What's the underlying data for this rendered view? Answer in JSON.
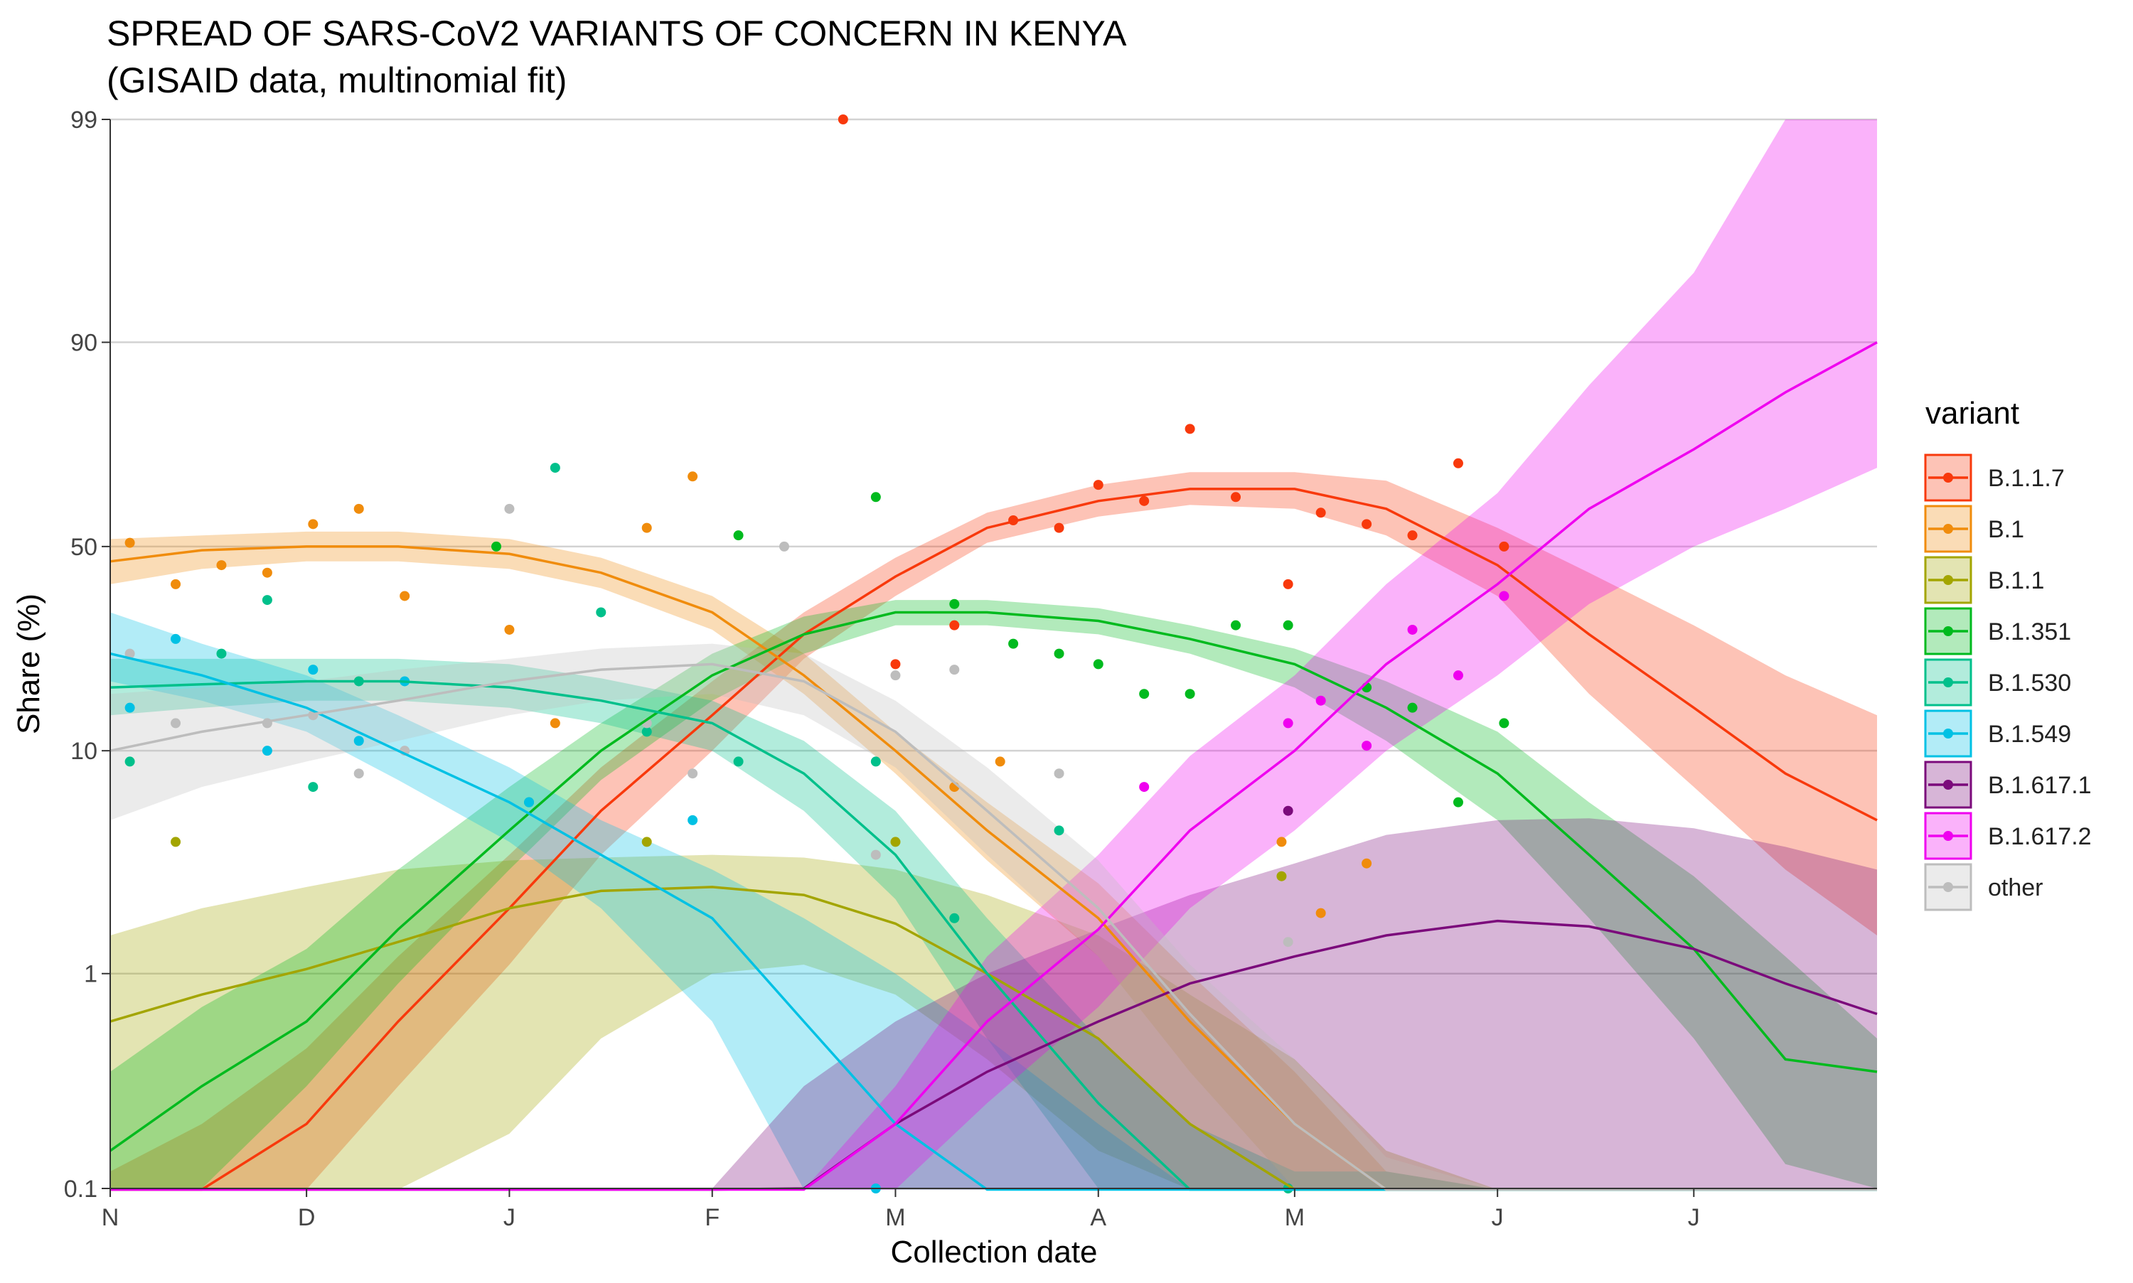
{
  "chart_data": {
    "type": "line",
    "title": "SPREAD OF SARS-CoV2 VARIANTS OF CONCERN IN KENYA",
    "subtitle": "(GISAID data, multinomial fit)",
    "xlabel": "Collection date",
    "ylabel": "Share (%)",
    "y_scale": "logit",
    "ylim": [
      0.1,
      99
    ],
    "y_ticks": [
      0.1,
      1,
      10,
      50,
      90,
      99
    ],
    "y_tick_labels": [
      "0.1",
      "1",
      "10",
      "50",
      "90",
      "99"
    ],
    "xlim": [
      "2020-11-01",
      "2021-07-29"
    ],
    "x_ticks": [
      "2020-11-01",
      "2020-12-01",
      "2021-01-01",
      "2021-02-01",
      "2021-03-01",
      "2021-04-01",
      "2021-05-01",
      "2021-06-01",
      "2021-07-01"
    ],
    "x_tick_labels": [
      "N",
      "D",
      "J",
      "F",
      "M",
      "A",
      "M",
      "J",
      "J"
    ],
    "grid": "horizontal",
    "legend_title": "variant",
    "legend_position": "right",
    "x": [
      "2020-11-01",
      "2020-11-15",
      "2020-12-01",
      "2020-12-15",
      "2021-01-01",
      "2021-01-15",
      "2021-02-01",
      "2021-02-15",
      "2021-03-01",
      "2021-03-15",
      "2021-04-01",
      "2021-04-15",
      "2021-05-01",
      "2021-05-15",
      "2021-06-01",
      "2021-06-15",
      "2021-07-01",
      "2021-07-15",
      "2021-07-29"
    ],
    "series": [
      {
        "name": "B.1.1.7",
        "color": "#F8390C",
        "fit": [
          0.05,
          0.08,
          0.2,
          0.6,
          2.0,
          5.5,
          14,
          28,
          42,
          55,
          62,
          65,
          65,
          60,
          45,
          28,
          15,
          8,
          5
        ],
        "lower": [
          0.02,
          0.03,
          0.09,
          0.3,
          1.1,
          3.5,
          10,
          23,
          37,
          51,
          58,
          61,
          60,
          53,
          37,
          17,
          7,
          3,
          1.5
        ],
        "upper": [
          0.12,
          0.2,
          0.45,
          1.2,
          3.5,
          8.5,
          19,
          33,
          47,
          59,
          66,
          69,
          69,
          67,
          55,
          43,
          30,
          20,
          14
        ],
        "points": [
          [
            "2021-02-21",
            99
          ],
          [
            "2021-03-01",
            22
          ],
          [
            "2021-03-10",
            30
          ],
          [
            "2021-03-19",
            57
          ],
          [
            "2021-03-26",
            55
          ],
          [
            "2021-04-01",
            66
          ],
          [
            "2021-04-08",
            62
          ],
          [
            "2021-04-15",
            78
          ],
          [
            "2021-04-22",
            63
          ],
          [
            "2021-04-30",
            40
          ],
          [
            "2021-05-05",
            59
          ],
          [
            "2021-05-12",
            56
          ],
          [
            "2021-05-19",
            53
          ],
          [
            "2021-05-26",
            71
          ],
          [
            "2021-06-02",
            50
          ]
        ]
      },
      {
        "name": "B.1",
        "color": "#F08C0C",
        "fit": [
          46,
          49,
          50,
          50,
          48,
          43,
          33,
          20,
          10,
          4.5,
          1.8,
          0.6,
          0.2,
          0.06,
          0.02,
          0.01,
          0.01,
          0.01,
          0.01
        ],
        "lower": [
          40,
          44,
          46,
          46,
          44,
          39,
          29,
          17,
          8,
          3.3,
          1.2,
          0.35,
          0.1,
          0.03,
          0.01,
          0.01,
          0.01,
          0.01,
          0.01
        ],
        "upper": [
          52,
          53,
          54,
          54,
          52,
          47,
          37,
          24,
          12,
          6,
          2.6,
          1.0,
          0.35,
          0.12,
          0.04,
          0.02,
          0.02,
          0.02,
          0.02
        ],
        "points": [
          [
            "2020-11-04",
            51
          ],
          [
            "2020-11-11",
            40
          ],
          [
            "2020-11-18",
            45
          ],
          [
            "2020-11-25",
            43
          ],
          [
            "2020-12-02",
            56
          ],
          [
            "2020-12-09",
            60
          ],
          [
            "2020-12-16",
            37
          ],
          [
            "2021-01-01",
            29
          ],
          [
            "2021-01-08",
            13
          ],
          [
            "2021-01-22",
            55
          ],
          [
            "2021-01-29",
            68
          ],
          [
            "2021-03-10",
            7
          ],
          [
            "2021-03-17",
            9
          ],
          [
            "2021-04-29",
            4
          ],
          [
            "2021-05-05",
            1.9
          ],
          [
            "2021-05-12",
            3.2
          ]
        ]
      },
      {
        "name": "B.1.1",
        "color": "#A3A500",
        "fit": [
          0.6,
          0.8,
          1.05,
          1.4,
          2.0,
          2.4,
          2.5,
          2.3,
          1.7,
          1.0,
          0.5,
          0.2,
          0.07,
          0.02,
          0.01,
          0.01,
          0.01,
          0.01,
          0.01
        ],
        "lower": [
          0.1,
          0.08,
          0.06,
          0.08,
          0.18,
          0.5,
          1.0,
          1.1,
          0.8,
          0.4,
          0.15,
          0.05,
          0.02,
          0.01,
          0.01,
          0.01,
          0.01,
          0.01,
          0.01
        ],
        "upper": [
          1.5,
          2.0,
          2.5,
          3.0,
          3.3,
          3.4,
          3.5,
          3.4,
          3.0,
          2.3,
          1.5,
          0.8,
          0.4,
          0.15,
          0.06,
          0.03,
          0.02,
          0.02,
          0.02
        ],
        "points": [
          [
            "2020-11-11",
            4
          ],
          [
            "2021-01-22",
            4
          ],
          [
            "2021-03-01",
            4
          ],
          [
            "2021-04-29",
            2.8
          ]
        ]
      },
      {
        "name": "B.1.351",
        "color": "#00BA1E",
        "fit": [
          0.15,
          0.3,
          0.6,
          1.6,
          4.5,
          10,
          20,
          28,
          33,
          33,
          31,
          27,
          22,
          15,
          8,
          3.5,
          1.3,
          0.4,
          0.35
        ],
        "lower": [
          0.05,
          0.1,
          0.3,
          0.9,
          3.0,
          7.5,
          16,
          24,
          30,
          30,
          28,
          24,
          18,
          11,
          5,
          1.8,
          0.5,
          0.13,
          0.1
        ],
        "upper": [
          0.35,
          0.7,
          1.3,
          3.0,
          7.0,
          13,
          24,
          32,
          36,
          36,
          34,
          30,
          25,
          19,
          12,
          6,
          2.8,
          1.2,
          0.5
        ],
        "points": [
          [
            "2020-12-30",
            50
          ],
          [
            "2021-02-05",
            53
          ],
          [
            "2021-02-26",
            63
          ],
          [
            "2021-03-10",
            35
          ],
          [
            "2021-03-19",
            26
          ],
          [
            "2021-03-26",
            24
          ],
          [
            "2021-04-01",
            22
          ],
          [
            "2021-04-08",
            17
          ],
          [
            "2021-04-15",
            17
          ],
          [
            "2021-04-22",
            30
          ],
          [
            "2021-04-30",
            30
          ],
          [
            "2021-05-12",
            18
          ],
          [
            "2021-05-19",
            15
          ],
          [
            "2021-05-26",
            6
          ],
          [
            "2021-06-02",
            13
          ]
        ]
      },
      {
        "name": "B.1.530",
        "color": "#00C08B",
        "fit": [
          18,
          18.5,
          19,
          19,
          18,
          16,
          13,
          8,
          3.5,
          1.0,
          0.25,
          0.06,
          0.015,
          0.01,
          0.01,
          0.01,
          0.01,
          0.01,
          0.01
        ],
        "lower": [
          14,
          15,
          16,
          16,
          15,
          13,
          10,
          5.5,
          2.2,
          0.5,
          0.1,
          0.02,
          0.01,
          0.01,
          0.01,
          0.01,
          0.01,
          0.01,
          0.01
        ],
        "upper": [
          23,
          23,
          23,
          23,
          22,
          19.5,
          16,
          11,
          5.5,
          1.8,
          0.5,
          0.2,
          0.12,
          0.12,
          0.08,
          0.03,
          0.02,
          0.02,
          0.02
        ],
        "points": [
          [
            "2020-11-04",
            9
          ],
          [
            "2020-11-18",
            24
          ],
          [
            "2020-11-25",
            36
          ],
          [
            "2020-12-02",
            7
          ],
          [
            "2020-12-09",
            19
          ],
          [
            "2021-01-04",
            6
          ],
          [
            "2021-01-08",
            70
          ],
          [
            "2021-01-15",
            33
          ],
          [
            "2021-01-22",
            12
          ],
          [
            "2021-02-05",
            9
          ],
          [
            "2021-02-26",
            9
          ],
          [
            "2021-03-10",
            1.8
          ],
          [
            "2021-03-26",
            4.5
          ],
          [
            "2021-04-30",
            0.1
          ]
        ]
      },
      {
        "name": "B.1.549",
        "color": "#00C1E4",
        "fit": [
          24,
          20,
          15,
          10,
          6,
          3.5,
          1.8,
          0.6,
          0.2,
          0.05,
          0.01,
          0.01,
          0.01,
          0.01,
          0.01,
          0.01,
          0.01,
          0.01,
          0.01
        ],
        "lower": [
          19,
          16,
          12,
          7.5,
          4.0,
          2.0,
          0.6,
          0.06,
          0.05,
          0.02,
          0.01,
          0.01,
          0.01,
          0.01,
          0.01,
          0.01,
          0.01,
          0.01,
          0.01
        ],
        "upper": [
          33,
          26,
          20,
          14,
          8.5,
          5.0,
          3.0,
          1.8,
          1.0,
          0.5,
          0.2,
          0.05,
          0.01,
          0.01,
          0.01,
          0.01,
          0.01,
          0.01,
          0.01
        ],
        "points": [
          [
            "2020-11-04",
            15
          ],
          [
            "2020-11-11",
            27
          ],
          [
            "2020-11-25",
            10
          ],
          [
            "2020-12-02",
            21
          ],
          [
            "2020-12-09",
            11
          ],
          [
            "2020-12-16",
            19
          ],
          [
            "2021-01-04",
            6
          ],
          [
            "2021-01-29",
            5
          ],
          [
            "2021-02-26",
            0.1
          ]
        ]
      },
      {
        "name": "B.1.617.1",
        "color": "#7B0A7B",
        "fit": [
          0.01,
          0.01,
          0.01,
          0.01,
          0.01,
          0.01,
          0.05,
          0.1,
          0.2,
          0.35,
          0.6,
          0.9,
          1.2,
          1.5,
          1.75,
          1.65,
          1.3,
          0.9,
          0.65
        ],
        "lower": [
          0.01,
          0.01,
          0.01,
          0.01,
          0.01,
          0.01,
          0.01,
          0.01,
          0.01,
          0.01,
          0.01,
          0.01,
          0.01,
          0.01,
          0.01,
          0.01,
          0.01,
          0.01,
          0.01
        ],
        "upper": [
          0.01,
          0.01,
          0.01,
          0.01,
          0.03,
          0.06,
          0.1,
          0.3,
          0.6,
          1.0,
          1.6,
          2.3,
          3.2,
          4.3,
          5.0,
          5.1,
          4.6,
          3.8,
          3.0
        ],
        "points": [
          [
            "2021-04-30",
            5.5
          ]
        ]
      },
      {
        "name": "B.1.617.2",
        "color": "#EF00EF",
        "fit": [
          0.01,
          0.01,
          0.01,
          0.01,
          0.01,
          0.01,
          0.01,
          0.03,
          0.2,
          0.6,
          1.6,
          4.5,
          10,
          22,
          40,
          60,
          74,
          84,
          90
        ],
        "lower": [
          0.01,
          0.01,
          0.01,
          0.01,
          0.01,
          0.01,
          0.01,
          0.01,
          0.06,
          0.25,
          0.7,
          2.0,
          4.5,
          10,
          20,
          35,
          50,
          60,
          70
        ],
        "upper": [
          0.01,
          0.01,
          0.01,
          0.01,
          0.01,
          0.01,
          0.01,
          0.05,
          0.3,
          1.2,
          3.5,
          9.5,
          20,
          40,
          64,
          85,
          95,
          99,
          99
        ],
        "points": [
          [
            "2021-04-08",
            7
          ],
          [
            "2021-04-30",
            13
          ],
          [
            "2021-05-05",
            16
          ],
          [
            "2021-05-12",
            10.5
          ],
          [
            "2021-05-19",
            29
          ],
          [
            "2021-05-26",
            20
          ],
          [
            "2021-06-02",
            37
          ]
        ]
      },
      {
        "name": "other",
        "color": "#BDBDBD",
        "fit": [
          10,
          12,
          14,
          16,
          19,
          21,
          22,
          19,
          12,
          5.5,
          2.0,
          0.65,
          0.2,
          0.06,
          0.02,
          0.01,
          0.01,
          0.01,
          0.01
        ],
        "lower": [
          5,
          7,
          9,
          11,
          14,
          16,
          17,
          14,
          8.5,
          3.5,
          1.2,
          0.35,
          0.1,
          0.03,
          0.01,
          0.01,
          0.01,
          0.01,
          0.01
        ],
        "upper": [
          17,
          18,
          19,
          21,
          23,
          25,
          26,
          24,
          16,
          8.5,
          3.3,
          1.1,
          0.4,
          0.14,
          0.05,
          0.02,
          0.02,
          0.02,
          0.02
        ],
        "points": [
          [
            "2020-11-04",
            24
          ],
          [
            "2020-11-11",
            13
          ],
          [
            "2020-11-25",
            13
          ],
          [
            "2020-12-02",
            14
          ],
          [
            "2020-12-09",
            8
          ],
          [
            "2020-12-16",
            10
          ],
          [
            "2021-01-01",
            60
          ],
          [
            "2021-01-22",
            13
          ],
          [
            "2021-01-29",
            8
          ],
          [
            "2021-02-12",
            50
          ],
          [
            "2021-02-26",
            3.5
          ],
          [
            "2021-03-01",
            20
          ],
          [
            "2021-03-10",
            21
          ],
          [
            "2021-03-26",
            8
          ],
          [
            "2021-04-30",
            1.4
          ]
        ]
      }
    ]
  }
}
